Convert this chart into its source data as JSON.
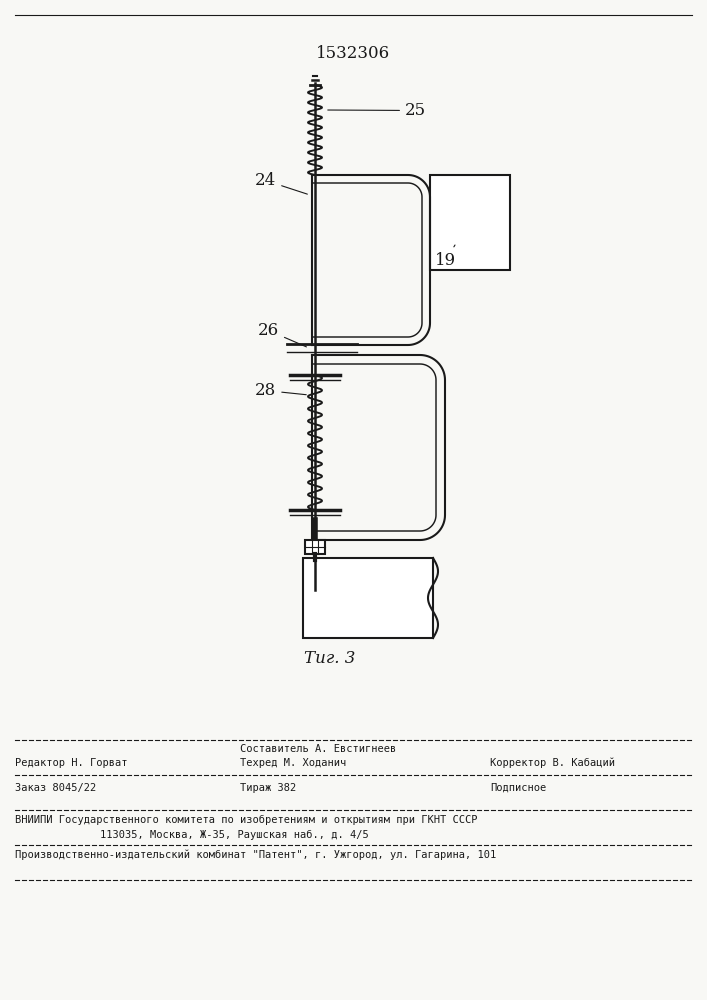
{
  "patent_number": "1532306",
  "fig_label": "Τиг. 3",
  "line_color": "#1a1a1a",
  "bg_color": "#f8f8f5",
  "label_24": "24",
  "label_25": "25",
  "label_26": "26",
  "label_28": "28",
  "label_19": "19",
  "footer_line1_left": "Редактор Н. Горват",
  "footer_line1_mid_top": "Составитель А. Евстигнеев",
  "footer_line1_mid_bot": "Техред М. Ходанич",
  "footer_line1_right": "Корректор В. Кабаций",
  "footer_line2_left": "Заказ 8045/22",
  "footer_line2_mid": "Тираж 382",
  "footer_line2_right": "Подписное",
  "footer_line3a": "ВНИИПИ Государственного комитета по изобретениям и открытиям при ГКНТ СССР",
  "footer_line3b": "113035, Москва, Ж-35, Раушская наб., д. 4/5",
  "footer_line4": "Производственно-издательский комбинат \"Патент\", г. Ужгород, ул. Гагарина, 101"
}
